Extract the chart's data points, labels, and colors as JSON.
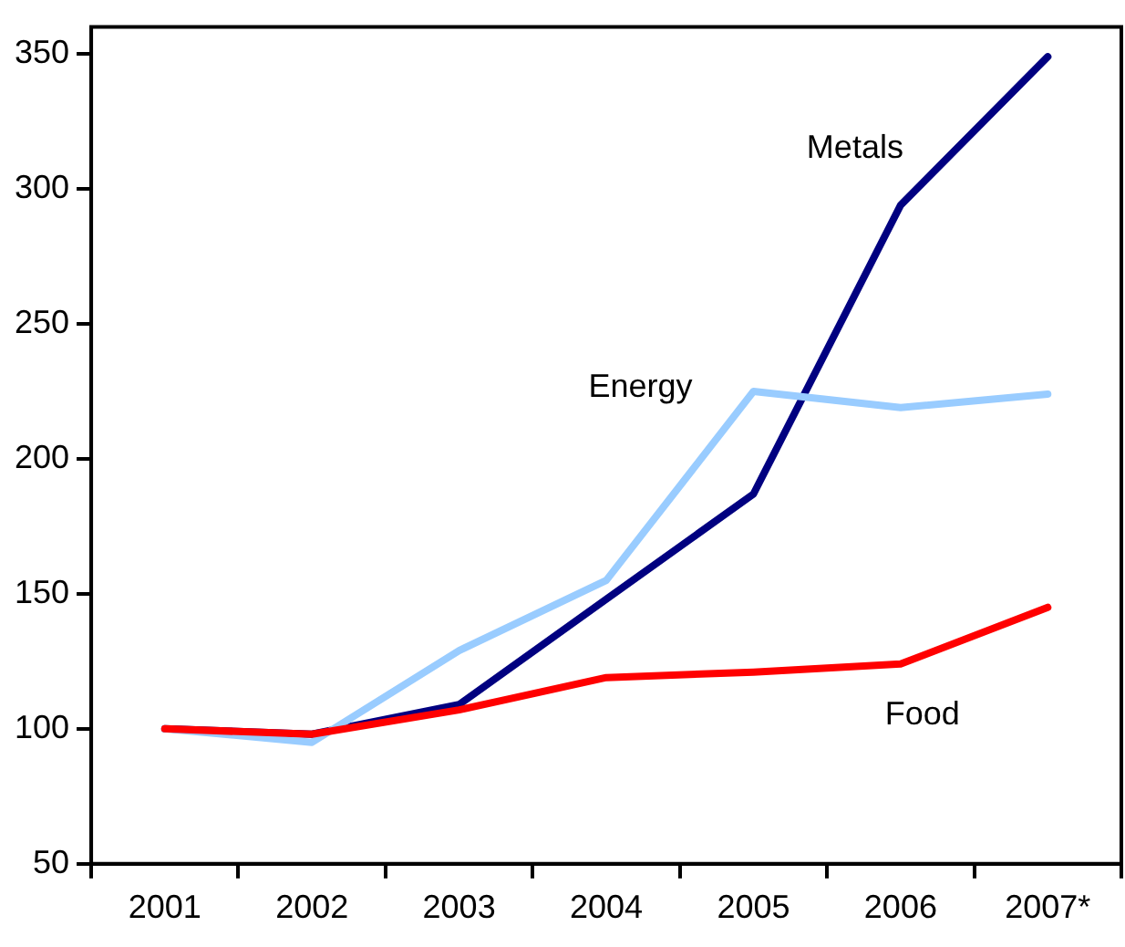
{
  "chart_data": {
    "type": "line",
    "categories": [
      "2001",
      "2002",
      "2003",
      "2004",
      "2005",
      "2006",
      "2007*"
    ],
    "series": [
      {
        "name": "Metals",
        "color": "#000080",
        "values": [
          100,
          98,
          109,
          148,
          187,
          294,
          349
        ]
      },
      {
        "name": "Energy",
        "color": "#99ccff",
        "values": [
          100,
          95,
          129,
          155,
          225,
          219,
          224
        ]
      },
      {
        "name": "Food",
        "color": "#ff0000",
        "values": [
          100,
          98,
          107,
          119,
          121,
          124,
          145
        ]
      }
    ],
    "ylim": [
      50,
      360
    ],
    "yticks": [
      50,
      100,
      150,
      200,
      250,
      300,
      350
    ],
    "grid": false,
    "legend": false,
    "marker": "none",
    "line_style": "solid"
  }
}
